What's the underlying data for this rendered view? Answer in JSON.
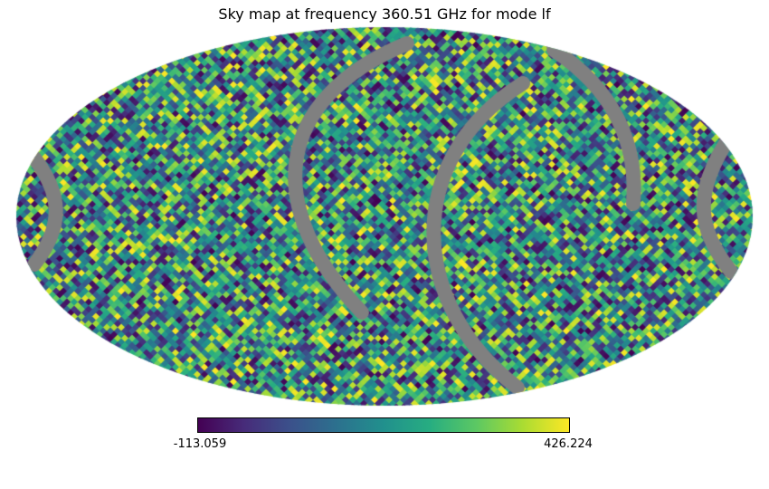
{
  "figure": {
    "title": "Sky map at frequency 360.51 GHz for mode lf"
  },
  "colorbar": {
    "min_label": "-113.059",
    "max_label": "426.224"
  },
  "colors": {
    "background": "#ffffff",
    "masked_gray": "#808080",
    "viridis": [
      "#440154",
      "#472c7a",
      "#3b518b",
      "#2c718e",
      "#21908d",
      "#27ad81",
      "#5cc863",
      "#aadc32",
      "#fde725"
    ]
  },
  "chart_data": {
    "type": "heatmap",
    "projection": "mollweide",
    "title": "Sky map at frequency 360.51 GHz for mode lf",
    "colormap": "viridis",
    "colorbar_orientation": "horizontal",
    "colorbar_min": -113.059,
    "colorbar_max": 426.224,
    "frequency_ghz": 360.51,
    "mode": "lf",
    "grid": false,
    "legend_position": "bottom colorbar",
    "description": "Full-sky HEALPix map rendered in Mollweide projection. Pixel values appear as uniform random noise spanning the full viridis color scale, interrupted by gray arc-shaped masked bands (unobserved scan regions) near the center, right side and ellipse rim."
  }
}
